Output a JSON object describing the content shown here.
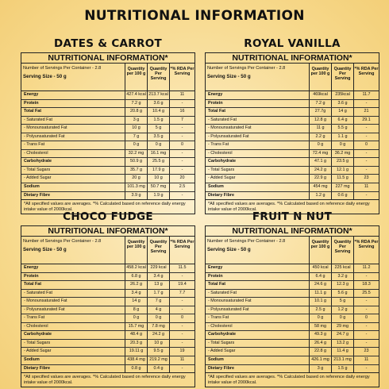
{
  "title": "NUTRITIONAL INFORMATION",
  "card_title": "NUTRITIONAL INFORMATION*",
  "header": {
    "servings": "Number of Servings Per Container - 2.8",
    "serving_size": "Serving Size - 50 g",
    "col1": "Quantity per 100 g",
    "col2": "Quantity Per Serving",
    "col3": "*% RDA Per Serving"
  },
  "footnote": "*All specified values are averages. *% Calculated based on reference daily energy intake value of 2000kcal.",
  "labels": [
    "Energy",
    "Protein",
    "Total Fat",
    "- Saturated Fat",
    "- Monounsaturated Fat",
    "- Polyunsaturated Fat",
    "- Trans Fat",
    "- Cholesterol",
    "Carbohydrate",
    "- Total Sugars",
    "- Added Sugar",
    "Sodium",
    "Dietary Fibre"
  ],
  "main_rows": [
    0,
    1,
    2,
    8,
    11,
    12
  ],
  "products": [
    {
      "name": "DATES & CARROT",
      "rows": [
        [
          "427.4 kcal",
          "213.7 kcal",
          "11"
        ],
        [
          "7.2 g",
          "3.6 g",
          "-"
        ],
        [
          "20.8 g",
          "10.4 g",
          "16"
        ],
        [
          "3 g",
          "1.5 g",
          "7"
        ],
        [
          "10 g",
          "5 g",
          "-"
        ],
        [
          "7 g",
          "3.5 g",
          "-"
        ],
        [
          "0 g",
          "0 g",
          "0"
        ],
        [
          "32.2 mg",
          "16.1 mg",
          "-"
        ],
        [
          "50.9 g",
          "25.5 g",
          "-"
        ],
        [
          "35.7 g",
          "17.9 g",
          "-"
        ],
        [
          "20 g",
          "10 g",
          "20"
        ],
        [
          "101.3 mg",
          "50.7 mg",
          "2.5"
        ],
        [
          "3.9 g",
          "1.9 g",
          "-"
        ]
      ]
    },
    {
      "name": "ROYAL VANILLA",
      "rows": [
        [
          "469kcal",
          "235kcal",
          "11.7"
        ],
        [
          "7.2 g",
          "3.6 g",
          "-"
        ],
        [
          "27.7g",
          "14 g",
          "21"
        ],
        [
          "12.8 g",
          "6.4 g",
          "29.1"
        ],
        [
          "11 g",
          "5.5 g",
          "-"
        ],
        [
          "2.2 g",
          "1.1 g",
          "-"
        ],
        [
          "0 g",
          "0 g",
          "0"
        ],
        [
          "72.4 mg",
          "36.2 mg",
          "-"
        ],
        [
          "47.1 g",
          "23.5 g",
          "-"
        ],
        [
          "24.2 g",
          "12.1 g",
          "-"
        ],
        [
          "22.9 g",
          "11.5 g",
          "23"
        ],
        [
          "454 mg",
          "227 mg",
          "11"
        ],
        [
          "1.2 g",
          "0.6 g",
          "-"
        ]
      ]
    },
    {
      "name": "CHOCO FUDGE",
      "rows": [
        [
          "458.2 kcal",
          "229 kcal",
          "11.5"
        ],
        [
          "6.8 g",
          "3.4 g",
          "-"
        ],
        [
          "26.2 g",
          "13 g",
          "19.4"
        ],
        [
          "3.4 g",
          "1.7 g",
          "7.7"
        ],
        [
          "14 g",
          "7 g",
          "-"
        ],
        [
          "8 g",
          "4 g",
          "-"
        ],
        [
          "0 g",
          "0 g",
          "0"
        ],
        [
          "15.7 mg",
          "7.8 mg",
          "-"
        ],
        [
          "48.4 g",
          "24.2 g",
          "-"
        ],
        [
          "20.3 g",
          "10 g",
          "-"
        ],
        [
          "19.11 g",
          "9.5 g",
          "19"
        ],
        [
          "438.4 mg",
          "219.2 mg",
          "11"
        ],
        [
          "0.8 g",
          "0.4 g",
          "-"
        ]
      ]
    },
    {
      "name": "FRUIT N NUT",
      "rows": [
        [
          "450 kcal",
          "225 kcal",
          "11.2"
        ],
        [
          "6.4 g",
          "3.2 g",
          "-"
        ],
        [
          "24.6 g",
          "12.3 g",
          "18.3"
        ],
        [
          "11.1 g",
          "5.6 g",
          "25.5"
        ],
        [
          "10.1 g",
          "5 g",
          "-"
        ],
        [
          "2.5 g",
          "1.2 g",
          "-"
        ],
        [
          "0 g",
          "0 g",
          "0"
        ],
        [
          "58 mg",
          "29 mg",
          "-"
        ],
        [
          "49.3 g",
          "24.7 g",
          "-"
        ],
        [
          "26.4 g",
          "13.2 g",
          "-"
        ],
        [
          "22.8 g",
          "11.4 g",
          "23"
        ],
        [
          "426.1 mg",
          "213.1 mg",
          "11"
        ],
        [
          "3 g",
          "1.5 g",
          "-"
        ]
      ]
    }
  ]
}
